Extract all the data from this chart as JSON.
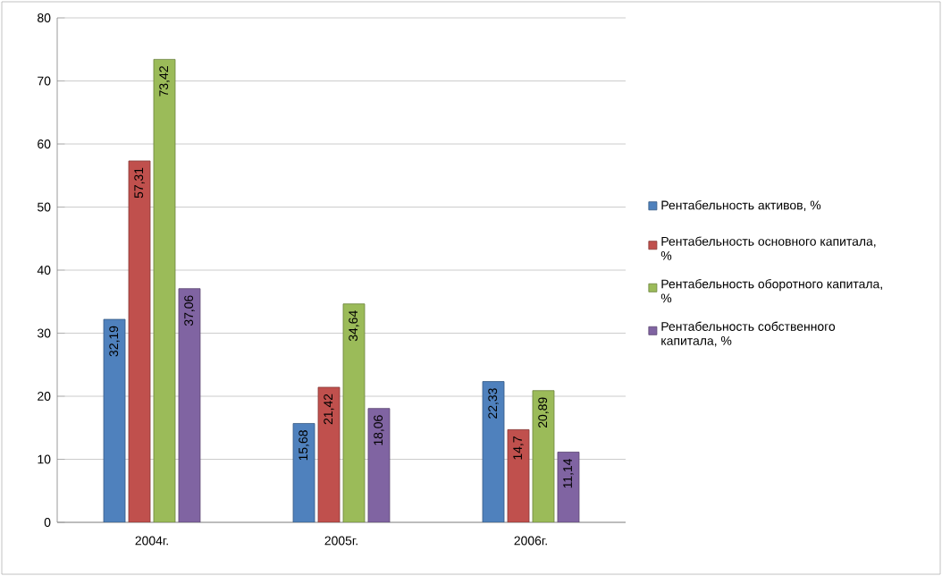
{
  "chart_data": {
    "type": "bar",
    "categories": [
      "2004г.",
      "2005г.",
      "2006г."
    ],
    "series": [
      {
        "name": "Рентабельность активов, %",
        "color": "#4f81bd",
        "values": [
          32.19,
          15.68,
          22.33
        ],
        "value_labels": [
          "32,19",
          "15,68",
          "22,33"
        ]
      },
      {
        "name": "Рентабельность основного капитала, %",
        "color": "#c0504d",
        "values": [
          57.31,
          21.42,
          14.7
        ],
        "value_labels": [
          "57,31",
          "21,42",
          "14,7"
        ]
      },
      {
        "name": "Рентабельность оборотного капитала, %",
        "color": "#9bbb59",
        "values": [
          73.42,
          34.64,
          20.89
        ],
        "value_labels": [
          "73,42",
          "34,64",
          "20,89"
        ]
      },
      {
        "name": "Рентабельность собственного капитала, %",
        "color": "#8064a2",
        "values": [
          37.06,
          18.06,
          11.14
        ],
        "value_labels": [
          "37,06",
          "18,06",
          "11,14"
        ]
      }
    ],
    "ylim": [
      0,
      80
    ],
    "yticks": [
      0,
      10,
      20,
      30,
      40,
      50,
      60,
      70,
      80
    ],
    "grid": "y",
    "legend": "right"
  }
}
